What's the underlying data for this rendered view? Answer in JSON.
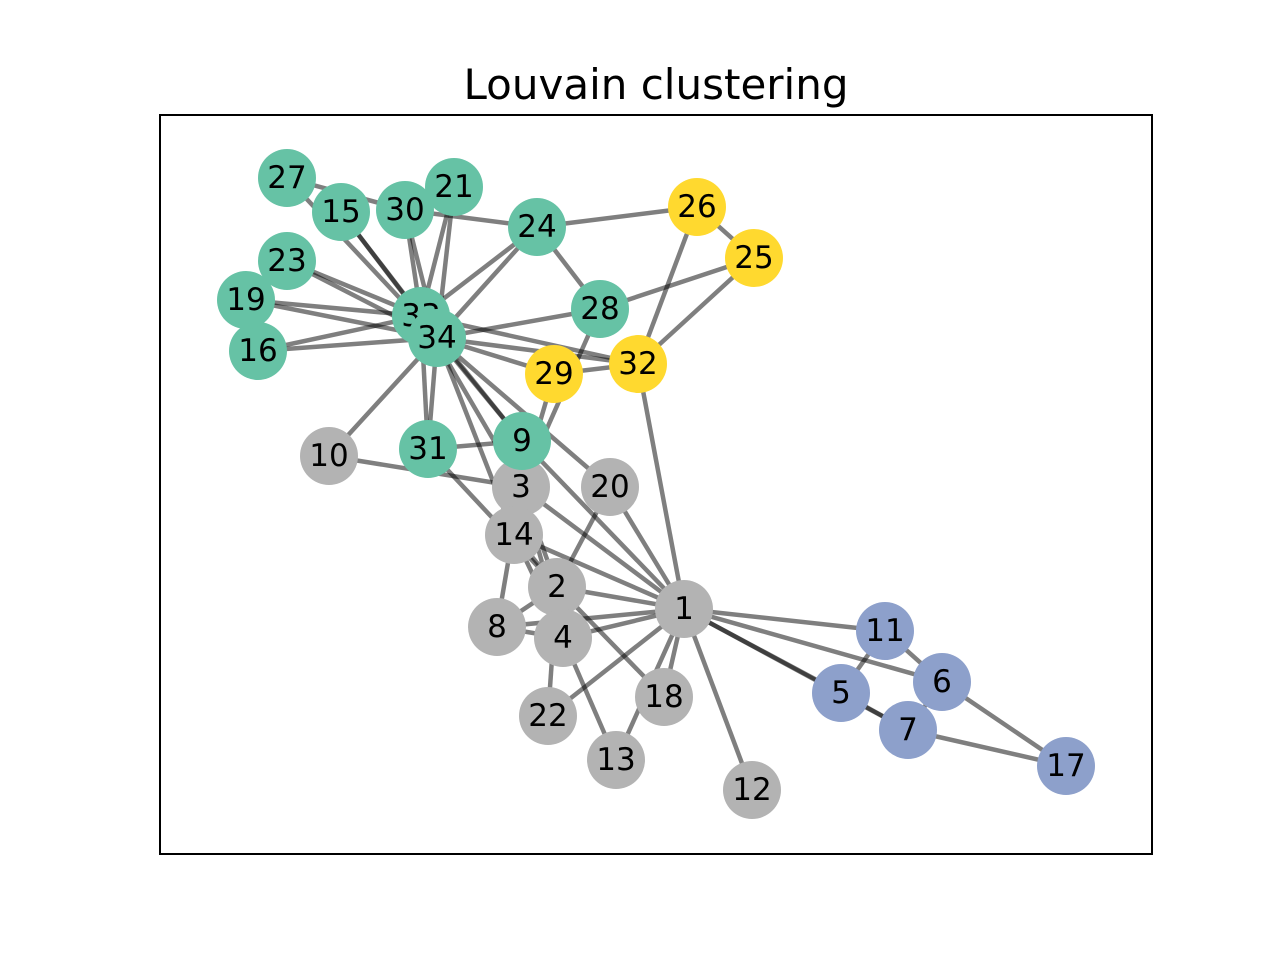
{
  "title": "Louvain clustering",
  "colors": {
    "green": "#66c2a5",
    "yellow": "#ffd92f",
    "gray": "#b3b3b3",
    "blue": "#8da0cb",
    "edge": "#000000"
  },
  "nodes": [
    {
      "id": "1",
      "color": "gray"
    },
    {
      "id": "2",
      "color": "gray"
    },
    {
      "id": "3",
      "color": "gray"
    },
    {
      "id": "4",
      "color": "gray"
    },
    {
      "id": "5",
      "color": "blue"
    },
    {
      "id": "6",
      "color": "blue"
    },
    {
      "id": "7",
      "color": "blue"
    },
    {
      "id": "8",
      "color": "gray"
    },
    {
      "id": "9",
      "color": "green"
    },
    {
      "id": "10",
      "color": "gray"
    },
    {
      "id": "11",
      "color": "blue"
    },
    {
      "id": "12",
      "color": "gray"
    },
    {
      "id": "13",
      "color": "gray"
    },
    {
      "id": "14",
      "color": "gray"
    },
    {
      "id": "15",
      "color": "green"
    },
    {
      "id": "16",
      "color": "green"
    },
    {
      "id": "17",
      "color": "blue"
    },
    {
      "id": "18",
      "color": "gray"
    },
    {
      "id": "19",
      "color": "green"
    },
    {
      "id": "20",
      "color": "gray"
    },
    {
      "id": "21",
      "color": "green"
    },
    {
      "id": "22",
      "color": "gray"
    },
    {
      "id": "23",
      "color": "green"
    },
    {
      "id": "24",
      "color": "green"
    },
    {
      "id": "25",
      "color": "yellow"
    },
    {
      "id": "26",
      "color": "yellow"
    },
    {
      "id": "27",
      "color": "green"
    },
    {
      "id": "28",
      "color": "green"
    },
    {
      "id": "29",
      "color": "yellow"
    },
    {
      "id": "30",
      "color": "green"
    },
    {
      "id": "31",
      "color": "green"
    },
    {
      "id": "32",
      "color": "yellow"
    },
    {
      "id": "33",
      "color": "green"
    },
    {
      "id": "34",
      "color": "green"
    }
  ],
  "edges": [
    [
      "1",
      "2"
    ],
    [
      "1",
      "3"
    ],
    [
      "1",
      "4"
    ],
    [
      "1",
      "5"
    ],
    [
      "1",
      "6"
    ],
    [
      "1",
      "7"
    ],
    [
      "1",
      "8"
    ],
    [
      "1",
      "9"
    ],
    [
      "1",
      "11"
    ],
    [
      "1",
      "12"
    ],
    [
      "1",
      "13"
    ],
    [
      "1",
      "14"
    ],
    [
      "1",
      "18"
    ],
    [
      "1",
      "20"
    ],
    [
      "1",
      "22"
    ],
    [
      "1",
      "32"
    ],
    [
      "2",
      "3"
    ],
    [
      "2",
      "4"
    ],
    [
      "2",
      "8"
    ],
    [
      "2",
      "14"
    ],
    [
      "2",
      "18"
    ],
    [
      "2",
      "20"
    ],
    [
      "2",
      "22"
    ],
    [
      "2",
      "31"
    ],
    [
      "3",
      "4"
    ],
    [
      "3",
      "8"
    ],
    [
      "3",
      "9"
    ],
    [
      "3",
      "10"
    ],
    [
      "3",
      "14"
    ],
    [
      "3",
      "28"
    ],
    [
      "3",
      "29"
    ],
    [
      "3",
      "33"
    ],
    [
      "4",
      "8"
    ],
    [
      "4",
      "13"
    ],
    [
      "4",
      "14"
    ],
    [
      "5",
      "7"
    ],
    [
      "5",
      "11"
    ],
    [
      "6",
      "7"
    ],
    [
      "6",
      "11"
    ],
    [
      "6",
      "17"
    ],
    [
      "7",
      "17"
    ],
    [
      "9",
      "31"
    ],
    [
      "9",
      "33"
    ],
    [
      "9",
      "34"
    ],
    [
      "10",
      "34"
    ],
    [
      "14",
      "34"
    ],
    [
      "15",
      "33"
    ],
    [
      "15",
      "34"
    ],
    [
      "16",
      "33"
    ],
    [
      "16",
      "34"
    ],
    [
      "19",
      "33"
    ],
    [
      "19",
      "34"
    ],
    [
      "20",
      "34"
    ],
    [
      "21",
      "33"
    ],
    [
      "21",
      "34"
    ],
    [
      "23",
      "33"
    ],
    [
      "23",
      "34"
    ],
    [
      "24",
      "26"
    ],
    [
      "24",
      "28"
    ],
    [
      "24",
      "30"
    ],
    [
      "24",
      "33"
    ],
    [
      "24",
      "34"
    ],
    [
      "25",
      "26"
    ],
    [
      "25",
      "28"
    ],
    [
      "25",
      "32"
    ],
    [
      "26",
      "32"
    ],
    [
      "27",
      "30"
    ],
    [
      "27",
      "34"
    ],
    [
      "28",
      "34"
    ],
    [
      "29",
      "32"
    ],
    [
      "29",
      "34"
    ],
    [
      "30",
      "33"
    ],
    [
      "30",
      "34"
    ],
    [
      "31",
      "33"
    ],
    [
      "31",
      "34"
    ],
    [
      "32",
      "33"
    ],
    [
      "32",
      "34"
    ],
    [
      "33",
      "34"
    ]
  ]
}
